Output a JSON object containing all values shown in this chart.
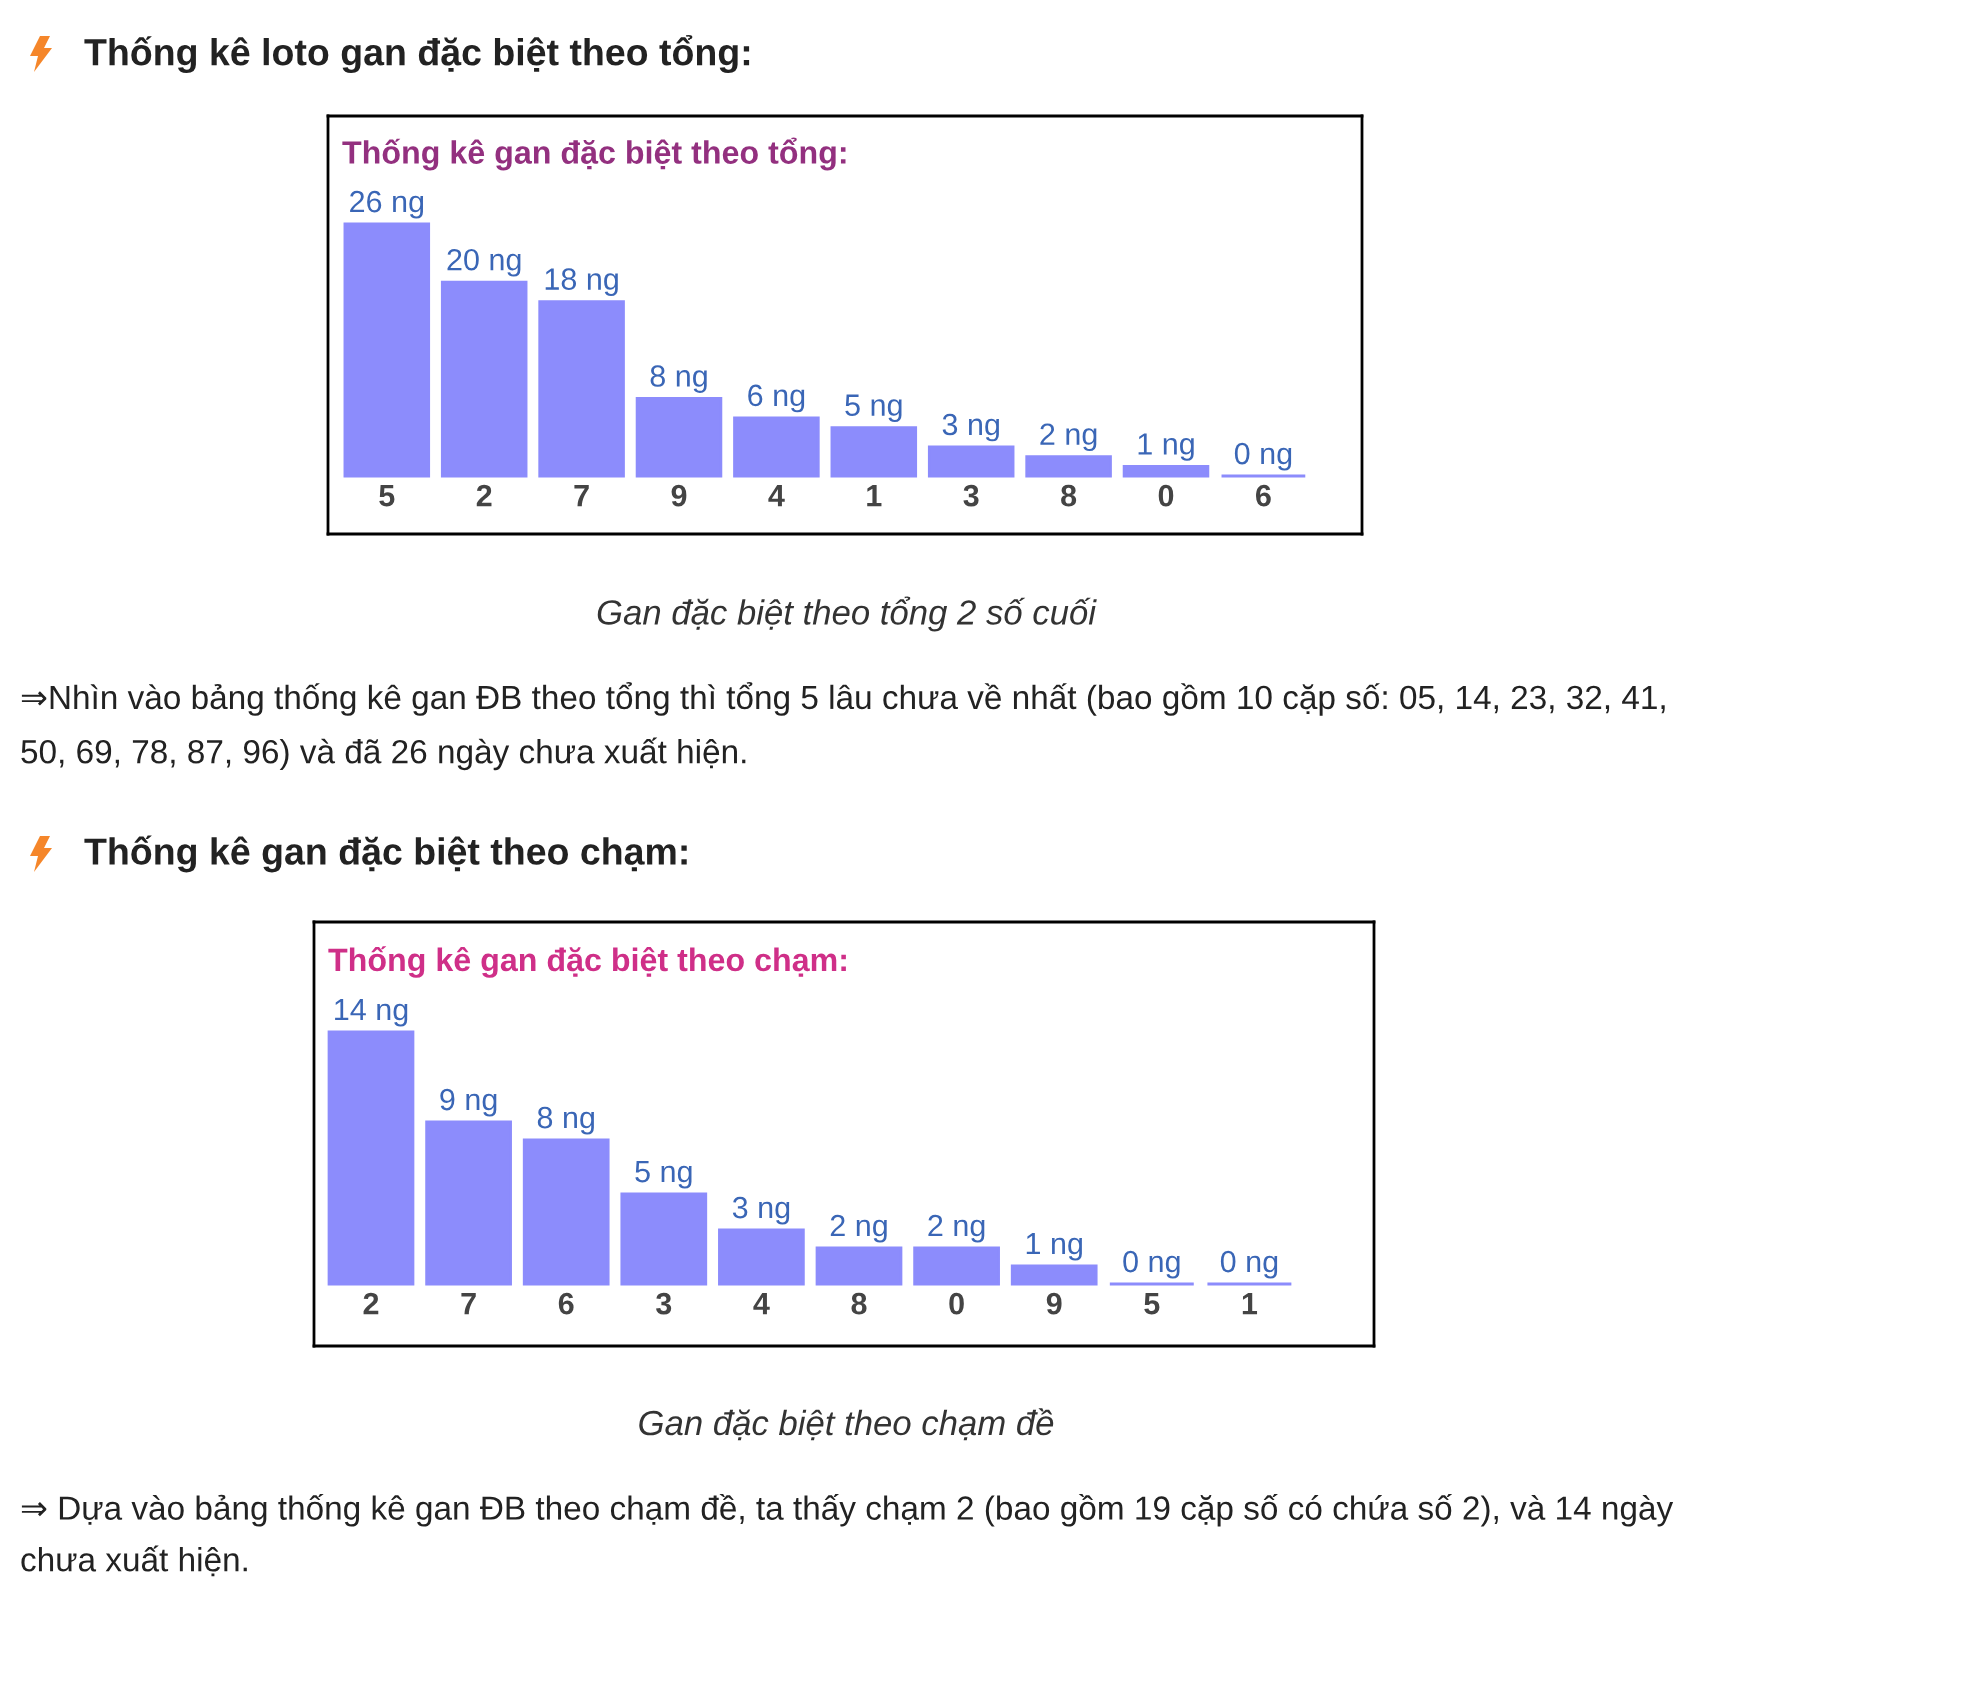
{
  "chart_data": [
    {
      "type": "bar",
      "title": "Thống kê loto gan đặc biệt theo tổng:",
      "subtitle": "Thống kê gan đặc biệt theo tổng:",
      "categories": [
        "5",
        "2",
        "7",
        "9",
        "4",
        "1",
        "3",
        "8",
        "0",
        "6"
      ],
      "values": [
        26,
        20,
        18,
        8,
        6,
        5,
        3,
        2,
        1,
        0
      ],
      "value_labels": [
        "26 ng",
        "20 ng",
        "18 ng",
        "8 ng",
        "6 ng",
        "5 ng",
        "3 ng",
        "2 ng",
        "1 ng",
        "0 ng"
      ],
      "color": "#8c8cfc",
      "annotations": [
        "Gan đặc biệt theo tổng 2 số cuối",
        "⇒Nhìn vào bảng thống kê gan ĐB theo tổng thì tổng 5 lâu chưa về nhất (bao gồm 10 cặp số: 05, 14, 23, 32, 41, 50, 69, 78, 87, 96) và đã 26 ngày chưa xuất hiện."
      ]
    },
    {
      "type": "bar",
      "title": "Thống kê gan đặc biệt theo chạm:",
      "subtitle": "Thống kê gan đặc biệt theo chạm:",
      "categories": [
        "2",
        "7",
        "6",
        "3",
        "4",
        "8",
        "0",
        "9",
        "5",
        "1"
      ],
      "values": [
        14,
        9,
        8,
        5,
        3,
        2,
        2,
        1,
        0,
        0
      ],
      "value_labels": [
        "14 ng",
        "9 ng",
        "8 ng",
        "5 ng",
        "3 ng",
        "2 ng",
        "2 ng",
        "1 ng",
        "0 ng",
        "0 ng"
      ],
      "color": "#8c8cfc",
      "annotations": [
        "Gan đặc biệt theo chạm đề",
        "⇒ Dựa vào bảng thống kê gan ĐB theo chạm đề, ta thấy chạm 2 (bao gồm 19 cặp số có chứa số 2), và 14 ngày chưa xuất hiện."
      ]
    }
  ]
}
